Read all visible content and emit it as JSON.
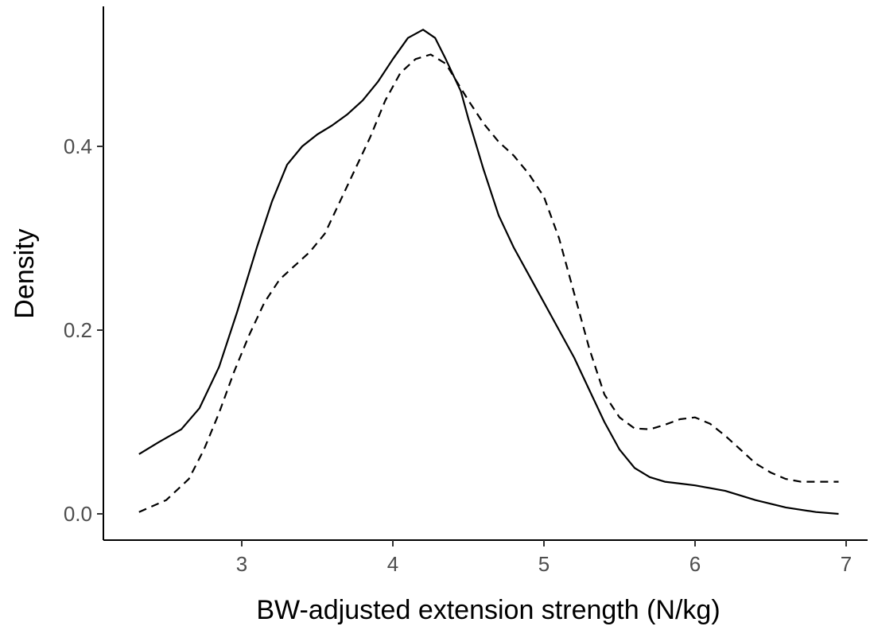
{
  "chart_data": {
    "type": "line",
    "title": "",
    "xlabel": "BW-adjusted extension strength (N/kg)",
    "ylabel": "Density",
    "xlim": [
      2.3,
      7.05
    ],
    "ylim": [
      -0.025,
      0.555
    ],
    "xticks": [
      3,
      4,
      5,
      6,
      7
    ],
    "xtick_labels": [
      "3",
      "4",
      "5",
      "6",
      "7"
    ],
    "yticks": [
      0.0,
      0.2,
      0.4
    ],
    "ytick_labels": [
      "0.0",
      "0.2",
      "0.4"
    ],
    "grid": false,
    "legend": "none",
    "series": [
      {
        "style": "solid",
        "x": [
          2.32,
          2.45,
          2.6,
          2.72,
          2.85,
          2.97,
          3.1,
          3.2,
          3.3,
          3.4,
          3.5,
          3.6,
          3.7,
          3.8,
          3.9,
          4.0,
          4.1,
          4.2,
          4.28,
          4.35,
          4.45,
          4.5,
          4.6,
          4.7,
          4.8,
          4.9,
          5.0,
          5.1,
          5.2,
          5.3,
          5.4,
          5.5,
          5.6,
          5.7,
          5.8,
          5.9,
          6.0,
          6.2,
          6.4,
          6.6,
          6.8,
          6.95
        ],
        "y": [
          0.065,
          0.078,
          0.092,
          0.115,
          0.16,
          0.22,
          0.29,
          0.34,
          0.38,
          0.4,
          0.413,
          0.423,
          0.435,
          0.45,
          0.47,
          0.495,
          0.518,
          0.527,
          0.518,
          0.495,
          0.46,
          0.43,
          0.375,
          0.325,
          0.29,
          0.26,
          0.23,
          0.2,
          0.17,
          0.135,
          0.1,
          0.07,
          0.05,
          0.04,
          0.035,
          0.033,
          0.031,
          0.025,
          0.015,
          0.007,
          0.002,
          0.0
        ]
      },
      {
        "style": "dashed",
        "x": [
          2.32,
          2.5,
          2.65,
          2.75,
          2.85,
          2.95,
          3.05,
          3.15,
          3.25,
          3.35,
          3.45,
          3.55,
          3.65,
          3.75,
          3.85,
          3.95,
          4.05,
          4.15,
          4.25,
          4.35,
          4.5,
          4.6,
          4.7,
          4.8,
          4.9,
          5.0,
          5.1,
          5.2,
          5.3,
          5.4,
          5.5,
          5.6,
          5.7,
          5.8,
          5.9,
          6.0,
          6.1,
          6.2,
          6.3,
          6.4,
          6.5,
          6.6,
          6.7,
          6.8,
          6.95
        ],
        "y": [
          0.002,
          0.015,
          0.038,
          0.07,
          0.11,
          0.155,
          0.195,
          0.23,
          0.255,
          0.27,
          0.285,
          0.305,
          0.34,
          0.375,
          0.41,
          0.45,
          0.48,
          0.495,
          0.5,
          0.49,
          0.45,
          0.425,
          0.405,
          0.39,
          0.37,
          0.345,
          0.3,
          0.24,
          0.18,
          0.13,
          0.105,
          0.093,
          0.092,
          0.097,
          0.103,
          0.105,
          0.098,
          0.085,
          0.07,
          0.055,
          0.045,
          0.038,
          0.035,
          0.035,
          0.035
        ]
      }
    ]
  }
}
